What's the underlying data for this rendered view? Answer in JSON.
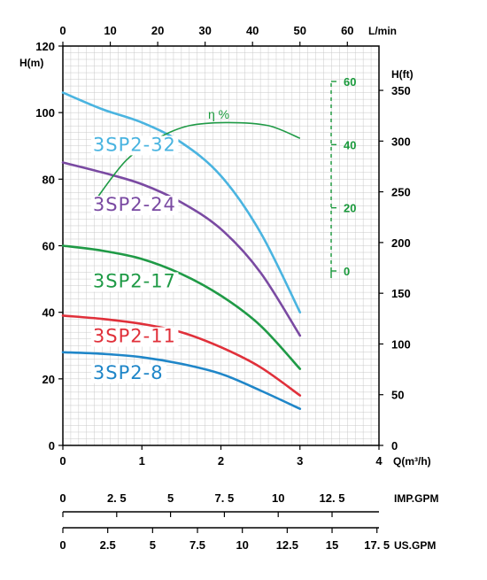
{
  "chart_data": {
    "type": "line",
    "x_axis": {
      "label": "Q(m³/h)",
      "min": 0,
      "max": 4,
      "ticks": [
        0,
        1,
        2,
        3,
        4
      ]
    },
    "y_axis": {
      "label": "H(m)",
      "min": 0,
      "max": 120,
      "ticks": [
        0,
        20,
        40,
        60,
        80,
        100,
        120
      ]
    },
    "top_axis": {
      "label": "L/min",
      "ticks": [
        "0",
        "10",
        "20",
        "30",
        "40",
        "50",
        "60"
      ]
    },
    "right_axis": {
      "label": "H(ft)",
      "ticks": [
        "0",
        "50",
        "100",
        "150",
        "200",
        "250",
        "300",
        "350"
      ]
    },
    "efficiency_axis": {
      "label": "η %",
      "ticks": [
        "0",
        "20",
        "40",
        "60"
      ]
    },
    "imp_gpm_axis": {
      "label": "IMP.GPM",
      "ticks": [
        "0",
        "2. 5",
        "5",
        "7. 5",
        "10",
        "12. 5"
      ]
    },
    "us_gpm_axis": {
      "label": "US.GPM",
      "ticks": [
        "0",
        "2.5",
        "5",
        "7.5",
        "10",
        "12.5",
        "15",
        "17. 5"
      ]
    },
    "grid": true,
    "series": [
      {
        "name": "3SP2-32",
        "color": "#4ab4e0",
        "label_q": 0.38,
        "label_h": 88.5,
        "points": [
          [
            0,
            106
          ],
          [
            0.5,
            101
          ],
          [
            1,
            97
          ],
          [
            1.5,
            91
          ],
          [
            2,
            81
          ],
          [
            2.5,
            64
          ],
          [
            3,
            40
          ]
        ]
      },
      {
        "name": "3SP2-24",
        "color": "#7a4aa2",
        "label_q": 0.38,
        "label_h": 70.5,
        "points": [
          [
            0,
            85
          ],
          [
            0.5,
            82
          ],
          [
            1,
            78.5
          ],
          [
            1.5,
            73
          ],
          [
            2,
            65
          ],
          [
            2.5,
            52
          ],
          [
            3,
            33
          ]
        ]
      },
      {
        "name": "3SP2-17",
        "color": "#1f9a46",
        "label_q": 0.38,
        "label_h": 47.5,
        "points": [
          [
            0,
            60
          ],
          [
            0.5,
            58.5
          ],
          [
            1,
            56
          ],
          [
            1.5,
            51.5
          ],
          [
            2,
            45
          ],
          [
            2.5,
            36
          ],
          [
            3,
            23
          ]
        ]
      },
      {
        "name": "3SP2-11",
        "color": "#e0303a",
        "label_q": 0.38,
        "label_h": 31.0,
        "points": [
          [
            0,
            39
          ],
          [
            0.5,
            38
          ],
          [
            1,
            36.5
          ],
          [
            1.5,
            34
          ],
          [
            2,
            29.5
          ],
          [
            2.5,
            23.5
          ],
          [
            3,
            15
          ]
        ]
      },
      {
        "name": "3SP2-8",
        "color": "#1f86c8",
        "label_q": 0.38,
        "label_h": 20.0,
        "points": [
          [
            0,
            28
          ],
          [
            0.5,
            27.5
          ],
          [
            1,
            26.5
          ],
          [
            1.5,
            24.5
          ],
          [
            2,
            21.5
          ],
          [
            2.5,
            16.5
          ],
          [
            3,
            11
          ]
        ]
      }
    ],
    "efficiency_series": {
      "color": "#1f9a46",
      "points": [
        [
          0.4,
          22
        ],
        [
          0.8,
          35
        ],
        [
          1.2,
          42
        ],
        [
          1.6,
          46
        ],
        [
          2.1,
          47
        ],
        [
          2.6,
          46
        ],
        [
          3,
          42
        ]
      ]
    }
  }
}
